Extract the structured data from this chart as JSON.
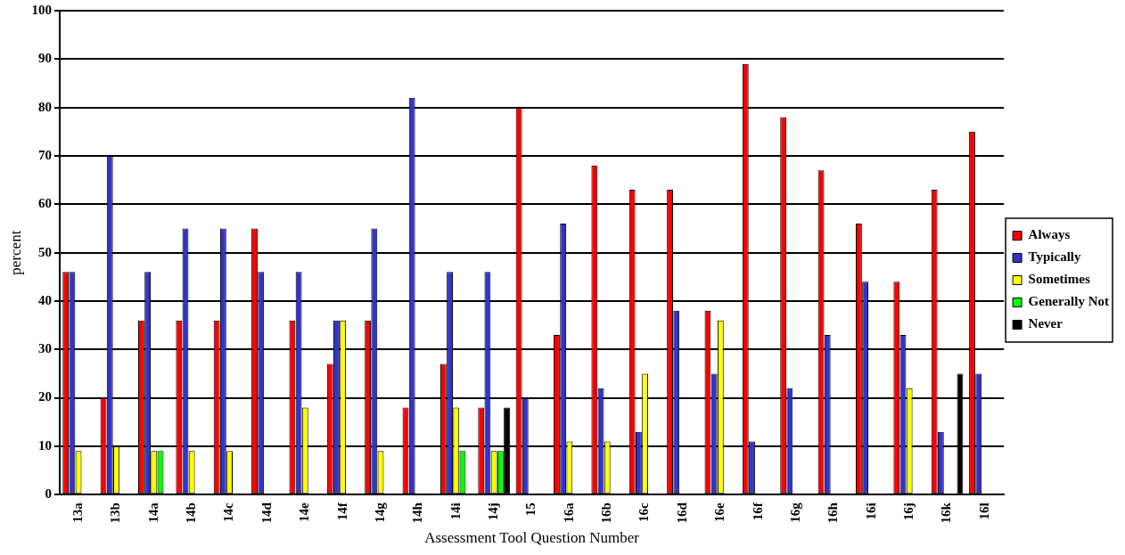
{
  "chart_data": {
    "type": "bar",
    "xlabel": "Assessment Tool Question Number",
    "ylabel": "percent",
    "categories": [
      "13a",
      "13b",
      "14a",
      "14b",
      "14c",
      "14d",
      "14e",
      "14f",
      "14g",
      "14h",
      "14i",
      "14j",
      "15",
      "16a",
      "16b",
      "16c",
      "16d",
      "16e",
      "16f",
      "16g",
      "16h",
      "16i",
      "16j",
      "16k",
      "16l"
    ],
    "series": [
      {
        "name": "Always",
        "color": "#ff0000",
        "values": [
          46,
          20,
          36,
          36,
          36,
          55,
          36,
          27,
          36,
          18,
          27,
          18,
          80,
          33,
          68,
          63,
          63,
          38,
          89,
          78,
          67,
          56,
          44,
          63,
          75
        ]
      },
      {
        "name": "Typically",
        "color": "#3333cc",
        "values": [
          46,
          70,
          46,
          55,
          55,
          46,
          46,
          36,
          55,
          82,
          46,
          46,
          20,
          56,
          22,
          13,
          38,
          25,
          11,
          22,
          33,
          44,
          33,
          13,
          25
        ]
      },
      {
        "name": "Sometimes",
        "color": "#ffff00",
        "values": [
          9,
          10,
          9,
          9,
          9,
          null,
          18,
          36,
          9,
          null,
          18,
          9,
          null,
          11,
          11,
          25,
          null,
          36,
          null,
          null,
          null,
          null,
          22,
          null,
          null
        ]
      },
      {
        "name": "Generally Not",
        "color": "#00ff00",
        "values": [
          null,
          null,
          9,
          null,
          null,
          null,
          null,
          null,
          null,
          null,
          9,
          9,
          null,
          null,
          null,
          null,
          null,
          null,
          null,
          null,
          null,
          null,
          null,
          null,
          null
        ]
      },
      {
        "name": "Never",
        "color": "#000000",
        "values": [
          null,
          null,
          null,
          null,
          null,
          null,
          null,
          null,
          null,
          null,
          null,
          18,
          null,
          null,
          null,
          null,
          null,
          null,
          null,
          null,
          null,
          null,
          null,
          25,
          null
        ]
      }
    ],
    "ylim": [
      0,
      100
    ],
    "yticks": [
      0,
      10,
      20,
      30,
      40,
      50,
      60,
      70,
      80,
      90,
      100
    ],
    "grid": "y",
    "legend": "right"
  }
}
